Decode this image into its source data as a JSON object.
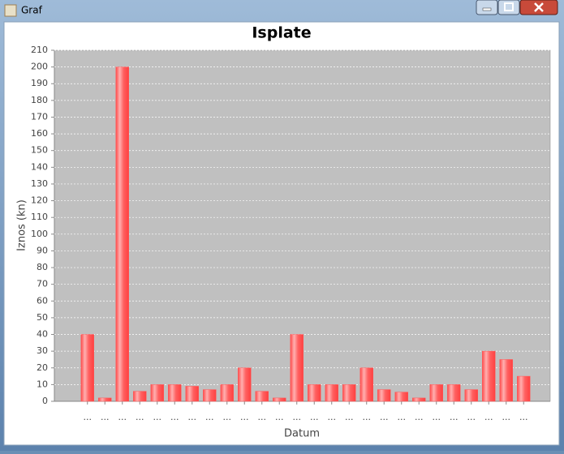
{
  "window_title": "Graf",
  "chart_data": {
    "type": "bar",
    "title": "Isplate",
    "y_label": "Iznos (kn)",
    "x_label": "Datum",
    "categories": [
      "...",
      "...",
      "...",
      "...",
      "...",
      "...",
      "...",
      "...",
      "...",
      "...",
      "...",
      "...",
      "...",
      "...",
      "...",
      "...",
      "...",
      "...",
      "...",
      "...",
      "...",
      "...",
      "...",
      "...",
      "...",
      "..."
    ],
    "values": [
      40,
      2,
      200,
      6,
      10,
      10,
      9,
      7,
      10,
      20,
      6,
      2,
      40,
      10,
      10,
      10,
      20,
      7,
      5.5,
      2,
      10,
      10,
      7,
      30,
      25,
      15
    ],
    "color": "#ff5a5a",
    "ylim": [
      0,
      210
    ],
    "yticks": [
      0,
      10,
      20,
      30,
      40,
      50,
      60,
      70,
      80,
      90,
      100,
      110,
      120,
      130,
      140,
      150,
      160,
      170,
      180,
      190,
      200,
      210
    ],
    "grid": true
  }
}
